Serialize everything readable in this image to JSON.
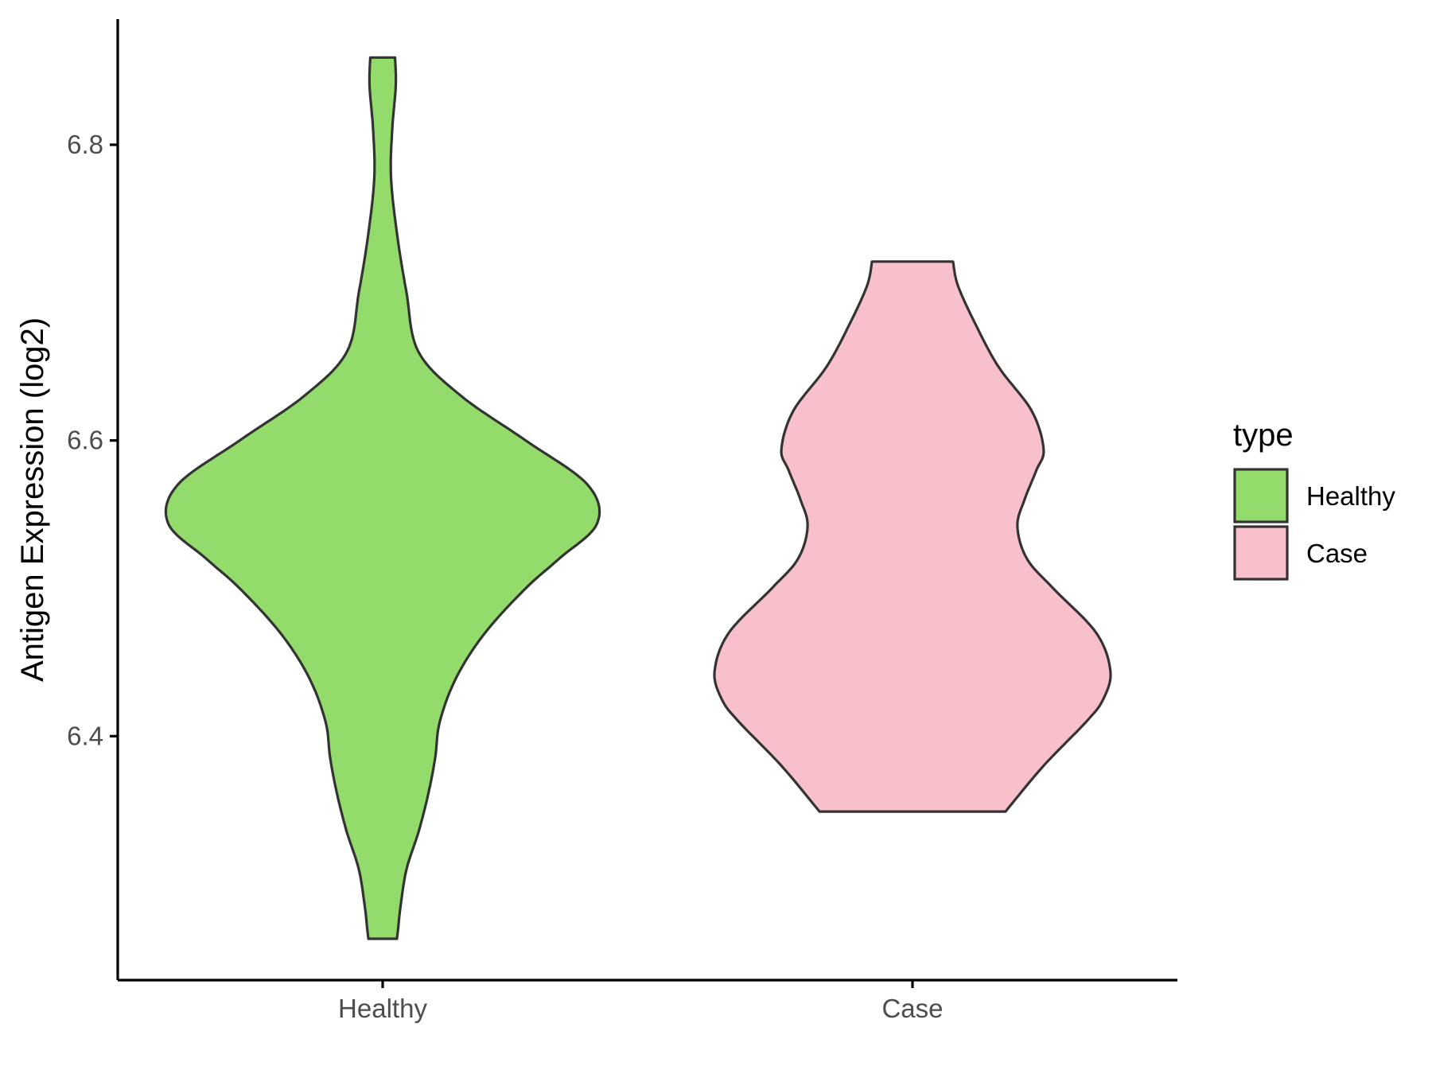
{
  "chart_data": {
    "type": "violin",
    "title": "",
    "xlabel": "",
    "ylabel": "Antigen Expression (log2)",
    "categories": [
      "Healthy",
      "Case"
    ],
    "ylim": [
      6.235,
      6.885
    ],
    "yticks": [
      6.4,
      6.6,
      6.8
    ],
    "ytick_labels": [
      "6.4",
      "6.6",
      "6.8"
    ],
    "grid": false,
    "legend": {
      "title": "type",
      "position": "right",
      "entries": [
        {
          "label": "Healthy",
          "color": "#93dc6b"
        },
        {
          "label": "Case",
          "color": "#f8c0cb"
        }
      ]
    },
    "series": [
      {
        "name": "Healthy",
        "color": "#93dc6b",
        "min": 6.263,
        "max": 6.859,
        "density": [
          [
            6.263,
            0.06
          ],
          [
            6.27,
            0.065
          ],
          [
            6.285,
            0.075
          ],
          [
            6.31,
            0.1
          ],
          [
            6.335,
            0.15
          ],
          [
            6.36,
            0.19
          ],
          [
            6.385,
            0.22
          ],
          [
            6.41,
            0.24
          ],
          [
            6.44,
            0.31
          ],
          [
            6.47,
            0.43
          ],
          [
            6.5,
            0.6
          ],
          [
            6.52,
            0.74
          ],
          [
            6.544,
            0.9
          ],
          [
            6.57,
            0.86
          ],
          [
            6.6,
            0.6
          ],
          [
            6.63,
            0.33
          ],
          [
            6.66,
            0.15
          ],
          [
            6.7,
            0.1
          ],
          [
            6.74,
            0.06
          ],
          [
            6.778,
            0.035
          ],
          [
            6.81,
            0.04
          ],
          [
            6.84,
            0.055
          ],
          [
            6.859,
            0.052
          ]
        ]
      },
      {
        "name": "Case",
        "color": "#f8c0cb",
        "min": 6.349,
        "max": 6.721,
        "density": [
          [
            6.349,
            0.39
          ],
          [
            6.38,
            0.55
          ],
          [
            6.41,
            0.73
          ],
          [
            6.425,
            0.8
          ],
          [
            6.444,
            0.83
          ],
          [
            6.47,
            0.77
          ],
          [
            6.5,
            0.59
          ],
          [
            6.52,
            0.48
          ],
          [
            6.542,
            0.44
          ],
          [
            6.56,
            0.47
          ],
          [
            6.58,
            0.52
          ],
          [
            6.594,
            0.55
          ],
          [
            6.62,
            0.5
          ],
          [
            6.65,
            0.36
          ],
          [
            6.68,
            0.26
          ],
          [
            6.705,
            0.19
          ],
          [
            6.721,
            0.17
          ]
        ]
      }
    ]
  }
}
